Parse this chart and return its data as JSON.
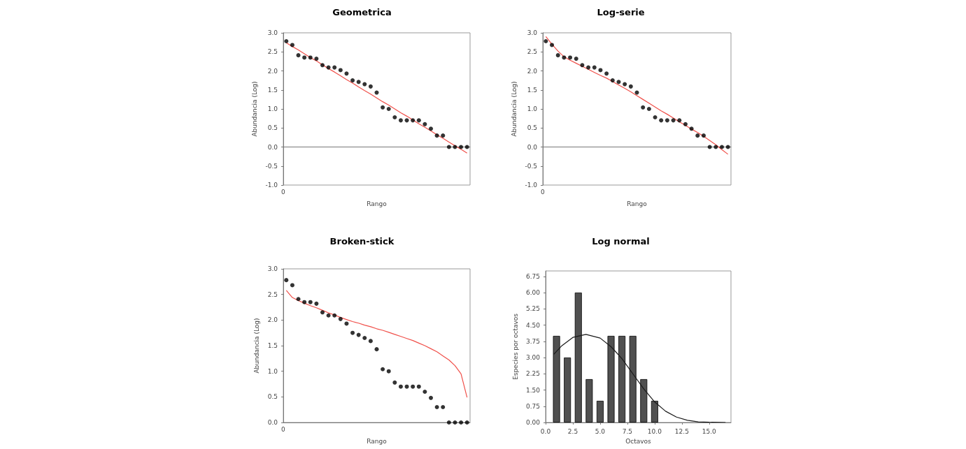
{
  "chart_data": [
    {
      "type": "scatter",
      "title": "Geometrica",
      "xlabel": "Rango",
      "ylabel": "Abundancia (Log)",
      "marker": "circle",
      "annotations": [
        "0"
      ],
      "ylim": [
        -1,
        3
      ],
      "yticks": [
        {
          "value": -1,
          "label": "-1.0"
        },
        {
          "value": -0.5,
          "label": "-0.5"
        },
        {
          "value": 0,
          "label": "0.0"
        },
        {
          "value": 0.5,
          "label": "0.5"
        },
        {
          "value": 1,
          "label": "1.0"
        },
        {
          "value": 1.5,
          "label": "1.5"
        },
        {
          "value": 2,
          "label": "2.0"
        },
        {
          "value": 2.5,
          "label": "2.5"
        },
        {
          "value": 3,
          "label": "3.0"
        }
      ],
      "categories": [
        null,
        null,
        null,
        null,
        null,
        null,
        null,
        null,
        null,
        null,
        null,
        null,
        null,
        null,
        null,
        null,
        null,
        null,
        null,
        null,
        null,
        null,
        null,
        null,
        null,
        null,
        null,
        null,
        null,
        null,
        null
      ],
      "series": [
        {
          "color": "#000000",
          "values": [
            2.78,
            2.68,
            2.41,
            2.35,
            2.35,
            2.32,
            2.15,
            2.09,
            2.09,
            2.02,
            1.93,
            1.75,
            1.71,
            1.65,
            1.59,
            1.43,
            1.04,
            1.0,
            0.78,
            0.7,
            0.7,
            0.7,
            0.7,
            0.6,
            0.48,
            0.3,
            0.3,
            0,
            0,
            0,
            0
          ]
        },
        {
          "type": "line",
          "marker": "none",
          "color": "#f0504a",
          "values": [
            2.74,
            2.64,
            2.55,
            2.45,
            2.35,
            2.26,
            2.16,
            2.06,
            1.97,
            1.87,
            1.77,
            1.68,
            1.58,
            1.48,
            1.39,
            1.29,
            1.19,
            1.1,
            1.0,
            0.9,
            0.81,
            0.71,
            0.61,
            0.52,
            0.42,
            0.32,
            0.23,
            0.13,
            0.03,
            -0.06,
            -0.16
          ]
        }
      ]
    },
    {
      "type": "scatter",
      "title": "Log-serie",
      "xlabel": "Rango",
      "ylabel": "Abundancia (Log)",
      "marker": "circle",
      "annotations": [
        "0"
      ],
      "ylim": [
        -1,
        3
      ],
      "yticks": [
        {
          "value": -1,
          "label": "-1.0"
        },
        {
          "value": -0.5,
          "label": "-0.5"
        },
        {
          "value": 0,
          "label": "0.0"
        },
        {
          "value": 0.5,
          "label": "0.5"
        },
        {
          "value": 1,
          "label": "1.0"
        },
        {
          "value": 1.5,
          "label": "1.5"
        },
        {
          "value": 2,
          "label": "2.0"
        },
        {
          "value": 2.5,
          "label": "2.5"
        },
        {
          "value": 3,
          "label": "3.0"
        }
      ],
      "categories": [
        null,
        null,
        null,
        null,
        null,
        null,
        null,
        null,
        null,
        null,
        null,
        null,
        null,
        null,
        null,
        null,
        null,
        null,
        null,
        null,
        null,
        null,
        null,
        null,
        null,
        null,
        null,
        null,
        null,
        null,
        null
      ],
      "series": [
        {
          "color": "#000000",
          "values": [
            2.78,
            2.68,
            2.41,
            2.35,
            2.35,
            2.32,
            2.15,
            2.09,
            2.09,
            2.02,
            1.93,
            1.75,
            1.71,
            1.65,
            1.59,
            1.43,
            1.04,
            1.0,
            0.78,
            0.7,
            0.7,
            0.7,
            0.7,
            0.6,
            0.48,
            0.3,
            0.3,
            0,
            0,
            0,
            0
          ]
        },
        {
          "type": "line",
          "marker": "none",
          "color": "#f0504a",
          "values": [
            2.9,
            2.7,
            2.52,
            2.37,
            2.28,
            2.2,
            2.12,
            2.04,
            1.96,
            1.88,
            1.81,
            1.72,
            1.63,
            1.54,
            1.45,
            1.35,
            1.25,
            1.15,
            1.05,
            0.95,
            0.86,
            0.76,
            0.66,
            0.57,
            0.47,
            0.38,
            0.28,
            0.17,
            0.06,
            -0.07,
            -0.19
          ]
        }
      ]
    },
    {
      "type": "scatter",
      "title": "Broken-stick",
      "xlabel": "Rango",
      "ylabel": "Abundancia (Log)",
      "marker": "circle",
      "annotations": [
        "0"
      ],
      "ylim": [
        0,
        3
      ],
      "yticks": [
        {
          "value": 0,
          "label": "0.0"
        },
        {
          "value": 0.5,
          "label": "0.5"
        },
        {
          "value": 1,
          "label": "1.0"
        },
        {
          "value": 1.5,
          "label": "1.5"
        },
        {
          "value": 2,
          "label": "2.0"
        },
        {
          "value": 2.5,
          "label": "2.5"
        },
        {
          "value": 3,
          "label": "3.0"
        }
      ],
      "categories": [
        null,
        null,
        null,
        null,
        null,
        null,
        null,
        null,
        null,
        null,
        null,
        null,
        null,
        null,
        null,
        null,
        null,
        null,
        null,
        null,
        null,
        null,
        null,
        null,
        null,
        null,
        null,
        null,
        null,
        null,
        null
      ],
      "series": [
        {
          "color": "#000000",
          "values": [
            2.78,
            2.68,
            2.41,
            2.35,
            2.35,
            2.32,
            2.15,
            2.09,
            2.09,
            2.02,
            1.93,
            1.75,
            1.71,
            1.65,
            1.59,
            1.43,
            1.04,
            1.0,
            0.78,
            0.7,
            0.7,
            0.7,
            0.7,
            0.6,
            0.48,
            0.3,
            0.3,
            0,
            0,
            0,
            0
          ]
        },
        {
          "type": "line",
          "marker": "none",
          "color": "#f0504a",
          "values": [
            2.58,
            2.44,
            2.38,
            2.33,
            2.28,
            2.24,
            2.19,
            2.14,
            2.1,
            2.05,
            2.01,
            1.97,
            1.94,
            1.9,
            1.87,
            1.83,
            1.8,
            1.76,
            1.72,
            1.68,
            1.64,
            1.6,
            1.55,
            1.5,
            1.44,
            1.38,
            1.3,
            1.22,
            1.11,
            0.95,
            0.49
          ]
        }
      ]
    },
    {
      "type": "bar",
      "title": "Log normal",
      "xlabel": "Octavos",
      "ylabel": "Especies por octavos",
      "xlim": [
        0,
        17
      ],
      "xticks": [
        {
          "value": 0,
          "label": "0.0"
        },
        {
          "value": 2.5,
          "label": "2.5"
        },
        {
          "value": 5,
          "label": "5.0"
        },
        {
          "value": 7.5,
          "label": "7.5"
        },
        {
          "value": 10,
          "label": "10.0"
        },
        {
          "value": 12.5,
          "label": "12.5"
        },
        {
          "value": 15,
          "label": "15.0"
        }
      ],
      "ylim": [
        0,
        7
      ],
      "yticks": [
        {
          "value": 0,
          "label": "0.00"
        },
        {
          "value": 0.75,
          "label": "0.75"
        },
        {
          "value": 1.5,
          "label": "1.50"
        },
        {
          "value": 2.25,
          "label": "2.25"
        },
        {
          "value": 3,
          "label": "3.00"
        },
        {
          "value": 3.75,
          "label": "3.75"
        },
        {
          "value": 4.5,
          "label": "4.50"
        },
        {
          "value": 5.25,
          "label": "5.25"
        },
        {
          "value": 6,
          "label": "6.00"
        },
        {
          "value": 6.75,
          "label": "6.75"
        }
      ],
      "x": [
        1,
        2,
        3,
        4,
        5,
        6,
        7,
        8,
        9,
        10
      ],
      "series": [
        {
          "color": "#505050",
          "values": [
            4,
            3,
            6,
            2,
            1,
            4,
            4,
            4,
            2,
            1
          ]
        },
        {
          "type": "line",
          "color": "#1a1a1a",
          "x": [
            0.75,
            1.5,
            2.5,
            3.7,
            5,
            6,
            7,
            8,
            9,
            10,
            11,
            12,
            13,
            14,
            15,
            16.5
          ],
          "values": [
            3.15,
            3.55,
            3.93,
            4.07,
            3.9,
            3.5,
            2.95,
            2.25,
            1.55,
            0.95,
            0.52,
            0.25,
            0.1,
            0.03,
            0.01,
            0
          ]
        }
      ]
    }
  ]
}
